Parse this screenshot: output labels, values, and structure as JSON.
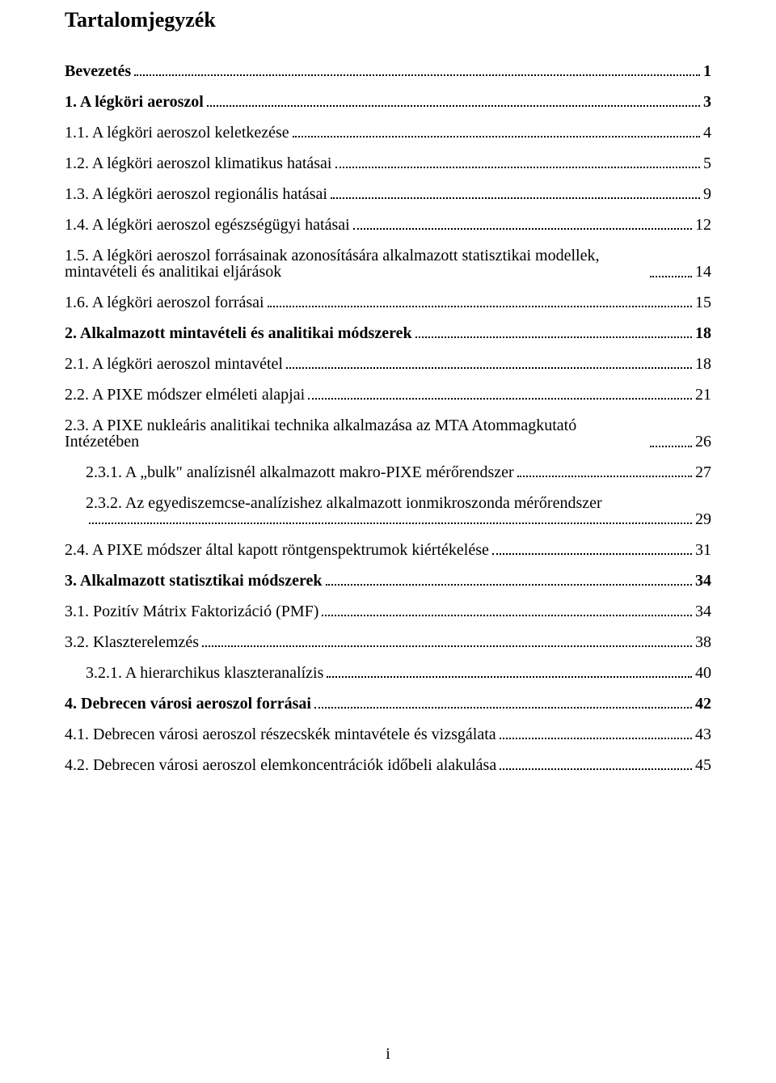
{
  "title": "Tartalomjegyzék",
  "footer": "i",
  "entries": [
    {
      "label": "Bevezetés",
      "page": "1",
      "bold": true,
      "indent": 0
    },
    {
      "label": "1. A légköri aeroszol",
      "page": "3",
      "bold": true,
      "indent": 0
    },
    {
      "label": "1.1. A légköri aeroszol keletkezése",
      "page": "4",
      "bold": false,
      "indent": 1
    },
    {
      "label": "1.2. A légköri aeroszol klimatikus hatásai",
      "page": "5",
      "bold": false,
      "indent": 1
    },
    {
      "label": "1.3. A légköri aeroszol regionális hatásai",
      "page": "9",
      "bold": false,
      "indent": 1
    },
    {
      "label": "1.4. A légköri aeroszol egészségügyi hatásai",
      "page": "12",
      "bold": false,
      "indent": 1
    },
    {
      "label": "1.5. A légköri aeroszol forrásainak azonosítására alkalmazott statisztikai modellek, mintavételi és analitikai eljárások",
      "page": "14",
      "bold": false,
      "indent": 1,
      "wrap": true
    },
    {
      "label": "1.6. A légköri aeroszol forrásai",
      "page": "15",
      "bold": false,
      "indent": 1
    },
    {
      "label": "2. Alkalmazott mintavételi és analitikai módszerek",
      "page": "18",
      "bold": true,
      "indent": 0
    },
    {
      "label": "2.1. A légköri aeroszol mintavétel",
      "page": "18",
      "bold": false,
      "indent": 1
    },
    {
      "label": "2.2. A PIXE módszer elméleti alapjai",
      "page": "21",
      "bold": false,
      "indent": 1
    },
    {
      "label": "2.3. A PIXE nukleáris analitikai technika alkalmazása az MTA Atommagkutató Intézetében",
      "page": "26",
      "bold": false,
      "indent": 1,
      "wrap": true
    },
    {
      "label": "2.3.1. A „bulk\" analízisnél alkalmazott makro-PIXE mérőrendszer",
      "page": "27",
      "bold": false,
      "indent": 2
    },
    {
      "label": "2.3.2. Az egyediszemcse-analízishez alkalmazott ionmikroszonda mérőrendszer",
      "page": "29",
      "bold": false,
      "indent": 2,
      "wrap_below": true
    },
    {
      "label": "2.4. A PIXE módszer által kapott röntgenspektrumok kiértékelése",
      "page": "31",
      "bold": false,
      "indent": 1
    },
    {
      "label": "3. Alkalmazott statisztikai módszerek",
      "page": "34",
      "bold": true,
      "indent": 0
    },
    {
      "label": "3.1. Pozitív Mátrix Faktorizáció (PMF)",
      "page": "34",
      "bold": false,
      "indent": 1
    },
    {
      "label": "3.2. Klaszterelemzés",
      "page": "38",
      "bold": false,
      "indent": 1
    },
    {
      "label": "3.2.1. A hierarchikus klaszteranalízis",
      "page": "40",
      "bold": false,
      "indent": 2
    },
    {
      "label": "4. Debrecen városi aeroszol forrásai",
      "page": "42",
      "bold": true,
      "indent": 0
    },
    {
      "label": "4.1. Debrecen városi aeroszol részecskék mintavétele és vizsgálata",
      "page": "43",
      "bold": false,
      "indent": 1
    },
    {
      "label": "4.2. Debrecen városi aeroszol elemkoncentrációk időbeli alakulása",
      "page": "45",
      "bold": false,
      "indent": 1
    }
  ]
}
